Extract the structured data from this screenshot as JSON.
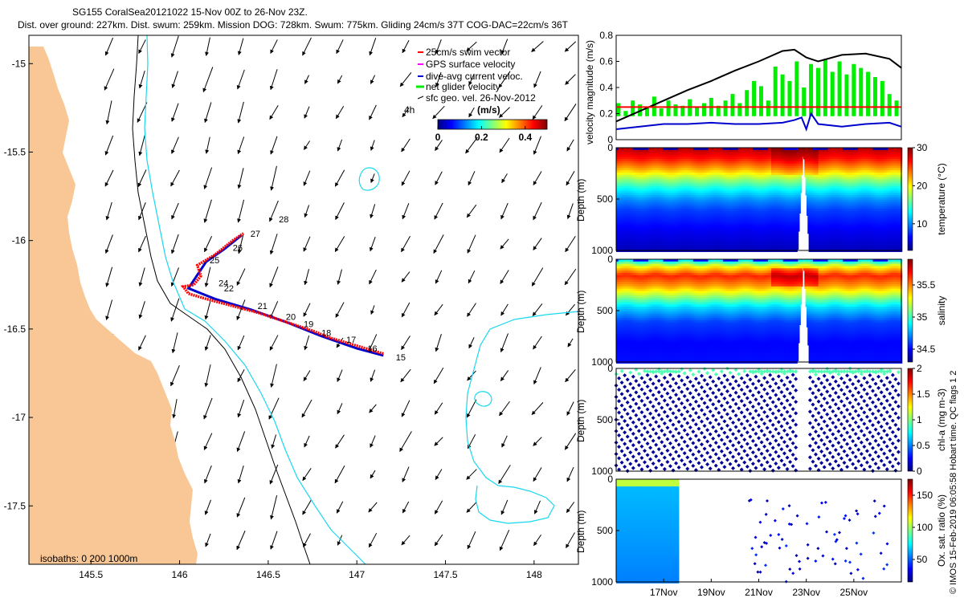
{
  "header": {
    "title_line1": "SG155 CoralSea20121022 15-Nov 00Z to 26-Nov 23Z.",
    "title_line2": "Dist. over ground: 227km. Dist. swum: 259km. Mission DOG: 728km. Swum: 775km. Gliding 24cm/s 37T COG-DAC=22cm/s 36T"
  },
  "watermark": "© IMOS 15-Feb-2019 06:05:58 Hobart time. QC flags 1  2",
  "colors": {
    "land": "#f9c795",
    "isobath_200": "#000000",
    "isobath_1000": "#18d8ee",
    "track_red": "#ff0000",
    "track_blue": "#0000cc",
    "swim": "#ff0000",
    "gps": "#ff00ff",
    "dac": "#0000cc",
    "net": "#00ee00"
  },
  "chart_data": [
    {
      "type": "map",
      "id": "track_map",
      "xlim": [
        145.15,
        148.25
      ],
      "ylim": [
        -17.83,
        -14.84
      ],
      "x_ticks": [
        "145.5",
        "146",
        "146.5",
        "147",
        "147.5",
        "148"
      ],
      "x_tick_values": [
        145.5,
        146,
        146.5,
        147,
        147.5,
        148
      ],
      "y_ticks": [
        "-15",
        "-15.5",
        "-16",
        "-16.5",
        "-17",
        "-17.5"
      ],
      "y_tick_values": [
        -15,
        -15.5,
        -16,
        -16.5,
        -17,
        -17.5
      ],
      "isobath_note": "isobaths: 0   200  1000m",
      "legend": [
        {
          "label": "25cm/s swim vector",
          "color_key": "swim"
        },
        {
          "label": "GPS surface velocity",
          "color_key": "gps"
        },
        {
          "label": "dive-avg current veloc.",
          "color_key": "dac"
        },
        {
          "label": "net glider velocity",
          "color_key": "net"
        },
        {
          "label": "sfc geo. vel. 26-Nov-2012",
          "color_key": "isobath_200"
        }
      ],
      "colorbar": {
        "label": "(m/s)",
        "ticks": [
          "0",
          "0.2",
          "0.4"
        ],
        "tick_values": [
          0,
          0.2,
          0.4
        ],
        "range": [
          0,
          0.5
        ],
        "extra_label": "4h"
      },
      "track_outbound": [
        [
          147.15,
          -16.64
        ],
        [
          147.05,
          -16.61
        ],
        [
          146.95,
          -16.58
        ],
        [
          146.85,
          -16.55
        ],
        [
          146.75,
          -16.51
        ],
        [
          146.6,
          -16.46
        ],
        [
          146.45,
          -16.41
        ],
        [
          146.3,
          -16.37
        ],
        [
          146.15,
          -16.33
        ],
        [
          146.05,
          -16.3
        ],
        [
          146.02,
          -16.26
        ],
        [
          146.08,
          -16.25
        ],
        [
          146.12,
          -16.2
        ],
        [
          146.1,
          -16.14
        ],
        [
          146.2,
          -16.08
        ],
        [
          146.3,
          -16.0
        ],
        [
          146.36,
          -15.96
        ]
      ],
      "track_return": [
        [
          146.35,
          -15.97
        ],
        [
          146.25,
          -16.05
        ],
        [
          146.15,
          -16.12
        ],
        [
          146.05,
          -16.27
        ],
        [
          146.2,
          -16.33
        ],
        [
          146.4,
          -16.39
        ],
        [
          146.6,
          -16.46
        ],
        [
          146.8,
          -16.54
        ],
        [
          147.0,
          -16.61
        ],
        [
          147.15,
          -16.65
        ]
      ],
      "day_labels": [
        {
          "text": "15",
          "lon": 147.22,
          "lat": -16.66
        },
        {
          "text": "16",
          "lon": 147.06,
          "lat": -16.61
        },
        {
          "text": "17",
          "lon": 146.94,
          "lat": -16.56
        },
        {
          "text": "18",
          "lon": 146.8,
          "lat": -16.52
        },
        {
          "text": "19",
          "lon": 146.7,
          "lat": -16.47
        },
        {
          "text": "20",
          "lon": 146.6,
          "lat": -16.43
        },
        {
          "text": "21",
          "lon": 146.44,
          "lat": -16.37
        },
        {
          "text": "22",
          "lon": 146.25,
          "lat": -16.27
        },
        {
          "text": "24",
          "lon": 146.22,
          "lat": -16.24
        },
        {
          "text": "25",
          "lon": 146.17,
          "lat": -16.11
        },
        {
          "text": "26",
          "lon": 146.3,
          "lat": -16.04
        },
        {
          "text": "27",
          "lon": 146.4,
          "lat": -15.96
        },
        {
          "text": "28",
          "lon": 146.56,
          "lat": -15.88
        }
      ]
    },
    {
      "type": "line",
      "id": "velocity",
      "ylabel": "velocity magnitude (m/s)",
      "ylim": [
        0,
        0.8
      ],
      "y_ticks": [
        "0",
        "0.2",
        "0.4",
        "0.6",
        "0.8"
      ],
      "y_tick_values": [
        0,
        0.2,
        0.4,
        0.6,
        0.8
      ],
      "x_range_days": [
        15.0,
        27.0
      ],
      "series": [
        {
          "name": "dist",
          "color_key": "isobath_200",
          "x": [
            15,
            16,
            17,
            18,
            19,
            20,
            21,
            22,
            22.5,
            23,
            23.5,
            24.5,
            25.5,
            26.5,
            27
          ],
          "y": [
            0.14,
            0.22,
            0.3,
            0.38,
            0.45,
            0.53,
            0.6,
            0.68,
            0.69,
            0.63,
            0.6,
            0.65,
            0.66,
            0.62,
            0.55
          ]
        },
        {
          "name": "swim",
          "color_key": "swim",
          "x": [
            15.0,
            27.0
          ],
          "y": [
            0.25,
            0.25
          ]
        },
        {
          "name": "dac",
          "color_key": "dac",
          "x": [
            15,
            16,
            17,
            18,
            19,
            20,
            21,
            22,
            22.5,
            22.8,
            23.0,
            23.2,
            23.5,
            24.5,
            25.5,
            26.5,
            27
          ],
          "y": [
            0.08,
            0.1,
            0.12,
            0.12,
            0.13,
            0.12,
            0.12,
            0.13,
            0.15,
            0.17,
            0.08,
            0.2,
            0.12,
            0.1,
            0.12,
            0.13,
            0.1
          ]
        }
      ],
      "net_bars": {
        "color_key": "net",
        "baseline": 0.18,
        "x": [
          15.1,
          15.4,
          15.7,
          16.0,
          16.3,
          16.6,
          16.9,
          17.2,
          17.5,
          17.8,
          18.1,
          18.4,
          18.7,
          19.0,
          19.3,
          19.6,
          19.9,
          20.2,
          20.5,
          20.8,
          21.1,
          21.4,
          21.7,
          22.0,
          22.3,
          22.6,
          22.9,
          23.2,
          23.5,
          23.8,
          24.1,
          24.4,
          24.7,
          25.0,
          25.3,
          25.6,
          25.9,
          26.2,
          26.5,
          26.8
        ],
        "y": [
          0.28,
          0.22,
          0.3,
          0.27,
          0.25,
          0.33,
          0.24,
          0.3,
          0.27,
          0.26,
          0.31,
          0.25,
          0.28,
          0.32,
          0.26,
          0.3,
          0.35,
          0.28,
          0.38,
          0.45,
          0.41,
          0.3,
          0.56,
          0.5,
          0.45,
          0.6,
          0.4,
          0.58,
          0.55,
          0.62,
          0.52,
          0.6,
          0.5,
          0.58,
          0.55,
          0.52,
          0.48,
          0.45,
          0.35,
          0.3
        ]
      }
    },
    {
      "type": "heatmap",
      "id": "temperature",
      "ylabel": "Depth (m)",
      "cb_label": "temperature (°C)",
      "cb_range": [
        3,
        30
      ],
      "cb_ticks": [
        "10",
        "20",
        "30"
      ],
      "cb_tick_values": [
        10,
        20,
        30
      ],
      "y_ticks": [
        "0",
        "500",
        "1000"
      ],
      "y_tick_values": [
        0,
        500,
        1000
      ],
      "depth_range": [
        0,
        1000
      ],
      "x_range_days": [
        15.0,
        27.0
      ],
      "gap_days": [
        22.6,
        23.1
      ],
      "profile": [
        {
          "depth": 0,
          "value": 28.5
        },
        {
          "depth": 100,
          "value": 26
        },
        {
          "depth": 200,
          "value": 22
        },
        {
          "depth": 300,
          "value": 17
        },
        {
          "depth": 400,
          "value": 13
        },
        {
          "depth": 500,
          "value": 10
        },
        {
          "depth": 600,
          "value": 8
        },
        {
          "depth": 800,
          "value": 6
        },
        {
          "depth": 1000,
          "value": 4.5
        }
      ]
    },
    {
      "type": "heatmap",
      "id": "salinity",
      "ylabel": "Depth (m)",
      "cb_label": "salinity",
      "cb_range": [
        34.3,
        35.9
      ],
      "cb_ticks": [
        "34.5",
        "35",
        "35.5"
      ],
      "cb_tick_values": [
        34.5,
        35,
        35.5
      ],
      "y_ticks": [
        "0",
        "500",
        "1000"
      ],
      "y_tick_values": [
        0,
        500,
        1000
      ],
      "depth_range": [
        0,
        1000
      ],
      "x_range_days": [
        15.0,
        27.0
      ],
      "gap_days": [
        22.6,
        23.1
      ],
      "profile": [
        {
          "depth": 0,
          "value": 34.85
        },
        {
          "depth": 60,
          "value": 35.3
        },
        {
          "depth": 150,
          "value": 35.65
        },
        {
          "depth": 250,
          "value": 35.45
        },
        {
          "depth": 350,
          "value": 35.15
        },
        {
          "depth": 450,
          "value": 34.85
        },
        {
          "depth": 600,
          "value": 34.6
        },
        {
          "depth": 800,
          "value": 34.5
        },
        {
          "depth": 1000,
          "value": 34.52
        }
      ]
    },
    {
      "type": "scatter",
      "id": "chla",
      "ylabel": "Depth (m)",
      "cb_label": "chl-a (mg m-3)",
      "cb_range": [
        0,
        2
      ],
      "cb_ticks": [
        "0",
        "0.5",
        "1",
        "1.5",
        "2"
      ],
      "cb_tick_values": [
        0,
        0.5,
        1,
        1.5,
        2
      ],
      "y_ticks": [
        "0",
        "500",
        "1000"
      ],
      "y_tick_values": [
        0,
        500,
        1000
      ],
      "depth_range": [
        0,
        1000
      ],
      "x_range_days": [
        15.0,
        27.0
      ],
      "gap_days": [
        22.6,
        23.1
      ],
      "surface_value": 0.9,
      "deep_value": 0.05
    },
    {
      "type": "scatter",
      "id": "oxygen",
      "ylabel": "Depth (m)",
      "cb_label": "Ox. sat. ratio (%)",
      "cb_range": [
        15,
        175
      ],
      "cb_ticks": [
        "50",
        "100",
        "150"
      ],
      "cb_tick_values": [
        50,
        100,
        150
      ],
      "y_ticks": [
        "0",
        "500",
        "1000"
      ],
      "y_tick_values": [
        0,
        500,
        1000
      ],
      "depth_range": [
        0,
        1000
      ],
      "x_range_days": [
        15.0,
        27.0
      ],
      "x_ticks": [
        "17Nov",
        "19Nov",
        "21Nov",
        "23Nov",
        "25Nov"
      ],
      "x_tick_values": [
        17,
        19,
        21,
        23,
        25
      ],
      "dense_range_days": [
        15.0,
        17.6
      ],
      "sparse_range_days": [
        20.6,
        26.8
      ]
    }
  ]
}
